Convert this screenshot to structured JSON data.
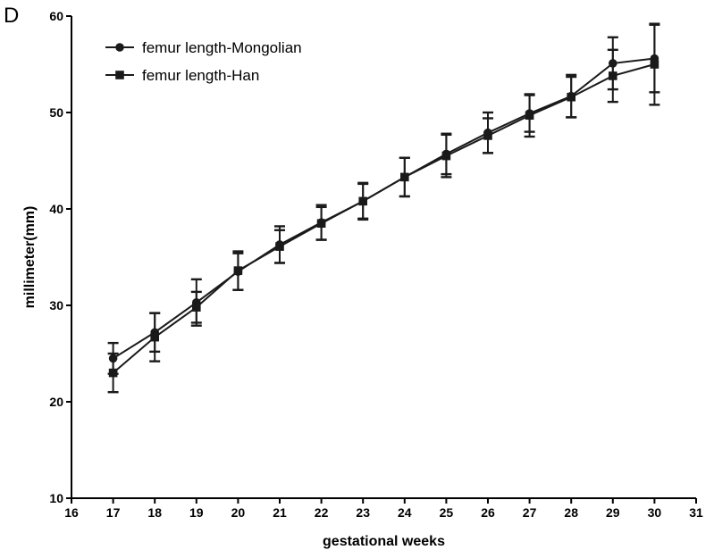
{
  "panel_label": "D",
  "chart_data": {
    "type": "line",
    "title": "",
    "xlabel": "gestational weeks",
    "ylabel": "millimeter(mm)",
    "xlim": [
      16,
      31
    ],
    "ylim": [
      10,
      60
    ],
    "xticks": [
      16,
      17,
      18,
      19,
      20,
      21,
      22,
      23,
      24,
      25,
      26,
      27,
      28,
      29,
      30,
      31
    ],
    "yticks": [
      10,
      20,
      30,
      40,
      50,
      60
    ],
    "grid": false,
    "legend_position": "top-left",
    "colors": {
      "series": "#1a1a1a",
      "axis": "#000000"
    },
    "series": [
      {
        "name": "femur length-Mongolian",
        "marker": "circle",
        "x": [
          17,
          18,
          19,
          20,
          21,
          22,
          23,
          24,
          25,
          26,
          27,
          28,
          29,
          30
        ],
        "y": [
          24.5,
          27.2,
          30.3,
          33.5,
          36.3,
          38.6,
          40.8,
          43.3,
          45.7,
          47.9,
          49.9,
          51.7,
          55.1,
          55.6
        ],
        "err": [
          1.6,
          2.0,
          2.4,
          1.9,
          1.9,
          1.8,
          1.9,
          2.0,
          2.1,
          2.1,
          1.9,
          2.2,
          2.7,
          3.5
        ]
      },
      {
        "name": "femur length-Han",
        "marker": "square",
        "x": [
          17,
          18,
          19,
          20,
          21,
          22,
          23,
          24,
          25,
          26,
          27,
          28,
          29,
          30
        ],
        "y": [
          23.0,
          26.7,
          29.8,
          33.6,
          36.1,
          38.5,
          40.8,
          43.3,
          45.5,
          47.6,
          49.7,
          51.6,
          53.8,
          55.0
        ],
        "err": [
          2.0,
          2.5,
          1.6,
          2.0,
          1.7,
          1.7,
          1.8,
          2.0,
          2.2,
          1.8,
          2.2,
          2.1,
          2.7,
          4.2
        ]
      }
    ]
  }
}
